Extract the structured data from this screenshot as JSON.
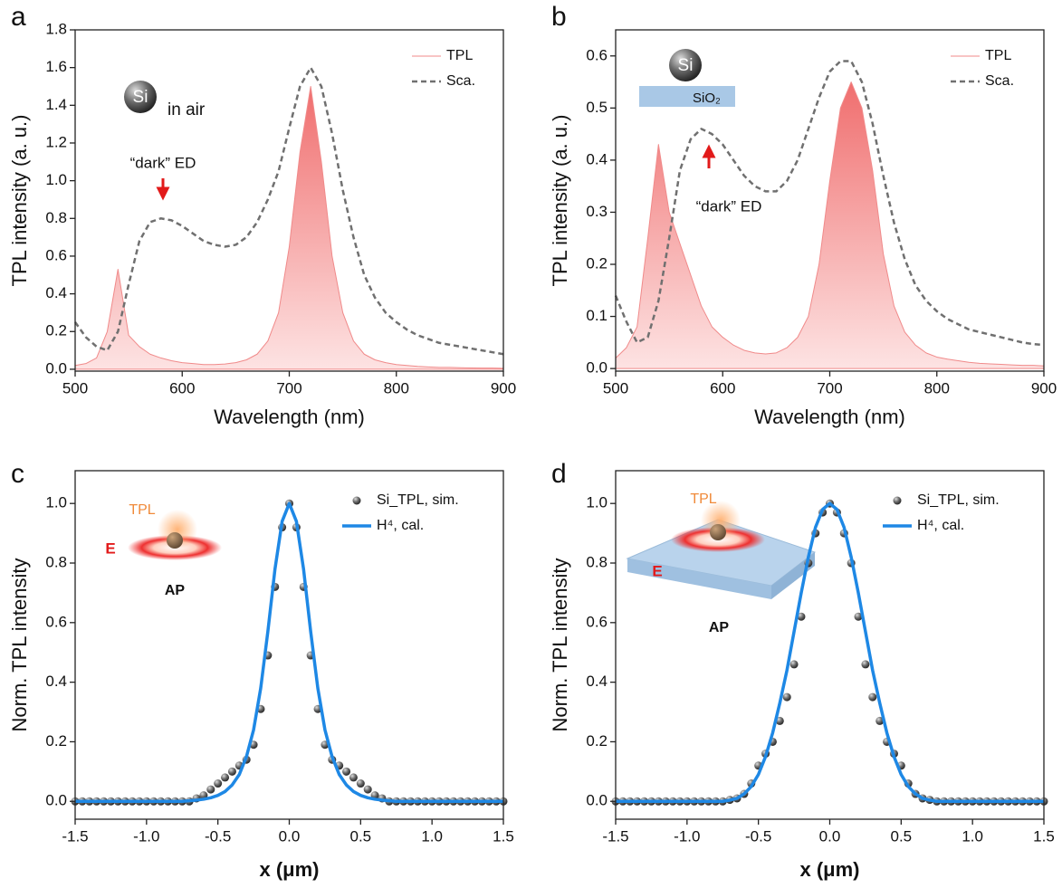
{
  "chart_data": [
    {
      "type": "line",
      "panel": "a",
      "xlabel": "Wavelength (nm)",
      "ylabel": "TPL  intensity (a. u.)",
      "x": [
        500,
        510,
        520,
        530,
        540,
        550,
        560,
        570,
        580,
        590,
        600,
        610,
        620,
        630,
        640,
        650,
        660,
        670,
        680,
        690,
        700,
        710,
        720,
        730,
        740,
        750,
        760,
        770,
        780,
        790,
        800,
        810,
        820,
        830,
        840,
        850,
        860,
        870,
        880,
        890,
        900
      ],
      "series": [
        {
          "name": "TPL",
          "color": "#f08a8a",
          "fill": true,
          "values": [
            0.02,
            0.03,
            0.06,
            0.2,
            0.53,
            0.18,
            0.12,
            0.08,
            0.06,
            0.045,
            0.035,
            0.03,
            0.025,
            0.025,
            0.028,
            0.035,
            0.05,
            0.08,
            0.15,
            0.3,
            0.65,
            1.15,
            1.5,
            1.1,
            0.6,
            0.3,
            0.15,
            0.08,
            0.05,
            0.035,
            0.025,
            0.02,
            0.015,
            0.012,
            0.01,
            0.01,
            0.008,
            0.007,
            0.006,
            0.006,
            0.005
          ]
        },
        {
          "name": "Sca.",
          "color": "#707070",
          "dash": true,
          "values": [
            0.25,
            0.17,
            0.12,
            0.1,
            0.2,
            0.45,
            0.68,
            0.78,
            0.8,
            0.79,
            0.76,
            0.72,
            0.68,
            0.66,
            0.65,
            0.66,
            0.7,
            0.78,
            0.9,
            1.05,
            1.28,
            1.5,
            1.6,
            1.5,
            1.25,
            0.95,
            0.7,
            0.5,
            0.38,
            0.3,
            0.25,
            0.21,
            0.18,
            0.16,
            0.14,
            0.13,
            0.12,
            0.11,
            0.1,
            0.09,
            0.08
          ]
        }
      ],
      "xlim": [
        500,
        900
      ],
      "xticks": [
        500,
        600,
        700,
        800,
        900
      ],
      "ylim": [
        -0.01,
        1.8
      ],
      "yticks": [
        {
          "value": 0,
          "label": "0.0"
        },
        0.2,
        0.4,
        0.6,
        0.8,
        {
          "value": 1,
          "label": "1.0"
        },
        1.2,
        1.4,
        1.6,
        1.8
      ],
      "annotations": [
        "Si",
        "in air",
        "“dark” ED"
      ]
    },
    {
      "type": "line",
      "panel": "b",
      "xlabel": "Wavelength (nm)",
      "ylabel": "TPL intensity (a. u.)",
      "x": [
        500,
        510,
        520,
        530,
        540,
        550,
        560,
        570,
        580,
        590,
        600,
        610,
        620,
        630,
        640,
        650,
        660,
        670,
        680,
        690,
        700,
        710,
        720,
        730,
        740,
        750,
        760,
        770,
        780,
        790,
        800,
        810,
        820,
        830,
        840,
        850,
        860,
        870,
        880,
        890,
        900
      ],
      "series": [
        {
          "name": "TPL",
          "color": "#f08a8a",
          "fill": true,
          "values": [
            0.02,
            0.04,
            0.08,
            0.25,
            0.43,
            0.3,
            0.24,
            0.18,
            0.12,
            0.08,
            0.06,
            0.045,
            0.035,
            0.03,
            0.028,
            0.03,
            0.04,
            0.06,
            0.1,
            0.2,
            0.36,
            0.5,
            0.55,
            0.5,
            0.38,
            0.22,
            0.12,
            0.07,
            0.045,
            0.03,
            0.022,
            0.018,
            0.015,
            0.012,
            0.01,
            0.009,
            0.008,
            0.007,
            0.006,
            0.006,
            0.005
          ]
        },
        {
          "name": "Sca.",
          "color": "#707070",
          "dash": true,
          "values": [
            0.14,
            0.09,
            0.05,
            0.06,
            0.13,
            0.25,
            0.38,
            0.44,
            0.46,
            0.45,
            0.43,
            0.4,
            0.37,
            0.35,
            0.34,
            0.34,
            0.36,
            0.4,
            0.46,
            0.52,
            0.57,
            0.59,
            0.59,
            0.55,
            0.47,
            0.37,
            0.28,
            0.21,
            0.16,
            0.13,
            0.11,
            0.095,
            0.085,
            0.075,
            0.07,
            0.065,
            0.06,
            0.055,
            0.05,
            0.047,
            0.045
          ]
        }
      ],
      "xlim": [
        500,
        900
      ],
      "xticks": [
        500,
        600,
        700,
        800,
        900
      ],
      "ylim": [
        -0.005,
        0.65
      ],
      "yticks": [
        {
          "value": 0,
          "label": "0.0"
        },
        0.1,
        0.2,
        0.3,
        0.4,
        0.5,
        0.6
      ],
      "annotations": [
        "Si",
        "SiO₂",
        "“dark” ED"
      ]
    },
    {
      "type": "line",
      "panel": "c",
      "xlabel": "x (μm)",
      "ylabel": "Norm. TPL intensity",
      "x": [
        -1.5,
        -1.45,
        -1.4,
        -1.35,
        -1.3,
        -1.25,
        -1.2,
        -1.15,
        -1.1,
        -1.05,
        -1.0,
        -0.95,
        -0.9,
        -0.85,
        -0.8,
        -0.75,
        -0.7,
        -0.65,
        -0.6,
        -0.55,
        -0.5,
        -0.45,
        -0.4,
        -0.35,
        -0.3,
        -0.25,
        -0.2,
        -0.15,
        -0.1,
        -0.05,
        0,
        0.05,
        0.1,
        0.15,
        0.2,
        0.25,
        0.3,
        0.35,
        0.4,
        0.45,
        0.5,
        0.55,
        0.6,
        0.65,
        0.7,
        0.75,
        0.8,
        0.85,
        0.9,
        0.95,
        1.0,
        1.05,
        1.1,
        1.15,
        1.2,
        1.25,
        1.3,
        1.35,
        1.4,
        1.45,
        1.5
      ],
      "series": [
        {
          "name": "Si_TPL, sim.",
          "color": "#222222",
          "marker": true,
          "values": [
            0,
            0,
            0,
            0,
            0,
            0,
            0,
            0,
            0,
            0,
            0,
            0,
            0,
            0,
            0,
            0,
            0,
            0.01,
            0.02,
            0.04,
            0.06,
            0.08,
            0.1,
            0.12,
            0.14,
            0.19,
            0.31,
            0.49,
            0.72,
            0.92,
            1.0,
            0.92,
            0.72,
            0.49,
            0.31,
            0.19,
            0.14,
            0.12,
            0.1,
            0.08,
            0.06,
            0.04,
            0.02,
            0.01,
            0,
            0,
            0,
            0,
            0,
            0,
            0,
            0,
            0,
            0,
            0,
            0,
            0,
            0,
            0,
            0,
            0
          ]
        },
        {
          "name": "H⁴, cal.",
          "color": "#1e88e5",
          "values": [
            0,
            0,
            0,
            0,
            0,
            0,
            0,
            0,
            0,
            0,
            0,
            0,
            0,
            0,
            0,
            0,
            0.002,
            0.004,
            0.007,
            0.012,
            0.02,
            0.033,
            0.055,
            0.09,
            0.15,
            0.24,
            0.38,
            0.57,
            0.78,
            0.94,
            1,
            0.94,
            0.78,
            0.57,
            0.38,
            0.24,
            0.15,
            0.09,
            0.055,
            0.033,
            0.02,
            0.012,
            0.007,
            0.004,
            0.002,
            0,
            0,
            0,
            0,
            0,
            0,
            0,
            0,
            0,
            0,
            0,
            0,
            0,
            0,
            0,
            0
          ]
        }
      ],
      "xlim": [
        -1.5,
        1.5
      ],
      "xticks": [
        -1.5,
        {
          "value": -1,
          "label": "-1.0"
        },
        -0.5,
        {
          "value": 0,
          "label": "0.0"
        },
        0.5,
        {
          "value": 1,
          "label": "1.0"
        },
        1.5
      ],
      "ylim": [
        -0.06,
        1.11
      ],
      "yticks": [
        {
          "value": 0,
          "label": "0.0"
        },
        0.2,
        0.4,
        0.6,
        0.8,
        {
          "value": 1,
          "label": "1.0"
        }
      ],
      "annotations": [
        "TPL",
        "E",
        "AP"
      ]
    },
    {
      "type": "line",
      "panel": "d",
      "xlabel": "x (μm)",
      "ylabel": "Norm. TPL intensity",
      "x": [
        -1.5,
        -1.45,
        -1.4,
        -1.35,
        -1.3,
        -1.25,
        -1.2,
        -1.15,
        -1.1,
        -1.05,
        -1.0,
        -0.95,
        -0.9,
        -0.85,
        -0.8,
        -0.75,
        -0.7,
        -0.65,
        -0.6,
        -0.55,
        -0.5,
        -0.45,
        -0.4,
        -0.35,
        -0.3,
        -0.25,
        -0.2,
        -0.15,
        -0.1,
        -0.05,
        0,
        0.05,
        0.1,
        0.15,
        0.2,
        0.25,
        0.3,
        0.35,
        0.4,
        0.45,
        0.5,
        0.55,
        0.6,
        0.65,
        0.7,
        0.75,
        0.8,
        0.85,
        0.9,
        0.95,
        1.0,
        1.05,
        1.1,
        1.15,
        1.2,
        1.25,
        1.3,
        1.35,
        1.4,
        1.45,
        1.5
      ],
      "series": [
        {
          "name": "Si_TPL, sim.",
          "color": "#222222",
          "marker": true,
          "values": [
            0,
            0,
            0,
            0,
            0,
            0,
            0,
            0,
            0,
            0,
            0,
            0,
            0,
            0,
            0,
            0,
            0.005,
            0.01,
            0.025,
            0.06,
            0.12,
            0.16,
            0.2,
            0.27,
            0.35,
            0.46,
            0.62,
            0.8,
            0.9,
            0.97,
            1.0,
            0.97,
            0.9,
            0.8,
            0.62,
            0.46,
            0.35,
            0.27,
            0.2,
            0.16,
            0.12,
            0.06,
            0.025,
            0.01,
            0.005,
            0,
            0,
            0,
            0,
            0,
            0,
            0,
            0,
            0,
            0,
            0,
            0,
            0,
            0,
            0,
            0
          ]
        },
        {
          "name": "H⁴, cal.",
          "color": "#1e88e5",
          "values": [
            0,
            0,
            0,
            0,
            0,
            0,
            0,
            0,
            0,
            0,
            0,
            0,
            0,
            0,
            0,
            0,
            0.004,
            0.01,
            0.025,
            0.05,
            0.09,
            0.15,
            0.23,
            0.33,
            0.44,
            0.57,
            0.7,
            0.82,
            0.92,
            0.98,
            1,
            0.98,
            0.92,
            0.82,
            0.7,
            0.57,
            0.44,
            0.33,
            0.23,
            0.15,
            0.09,
            0.05,
            0.025,
            0.01,
            0.004,
            0,
            0,
            0,
            0,
            0,
            0,
            0,
            0,
            0,
            0,
            0,
            0,
            0,
            0,
            0,
            0
          ]
        }
      ],
      "xlim": [
        -1.5,
        1.5
      ],
      "xticks": [
        -1.5,
        {
          "value": -1,
          "label": "-1.0"
        },
        -0.5,
        {
          "value": 0,
          "label": "0.0"
        },
        0.5,
        {
          "value": 1,
          "label": "1.0"
        },
        1.5
      ],
      "ylim": [
        -0.06,
        1.11
      ],
      "yticks": [
        {
          "value": 0,
          "label": "0.0"
        },
        0.2,
        0.4,
        0.6,
        0.8,
        {
          "value": 1,
          "label": "1.0"
        }
      ],
      "annotations": [
        "TPL",
        "E",
        "AP"
      ]
    }
  ]
}
